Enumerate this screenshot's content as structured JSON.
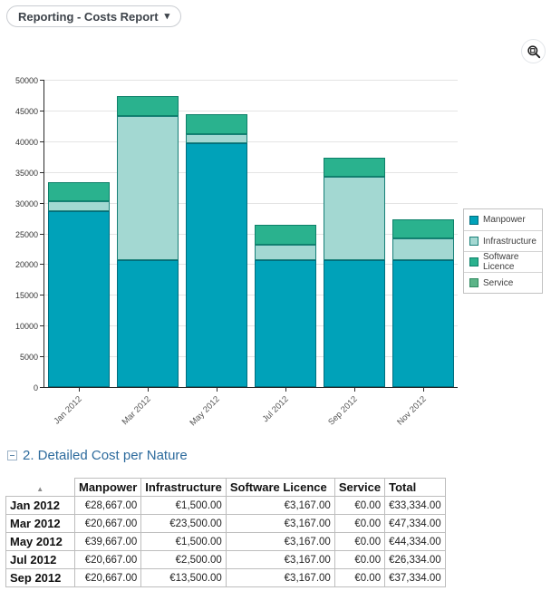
{
  "header": {
    "report_selector_label": "Reporting - Costs Report"
  },
  "icons": {
    "chevron_down": "▾",
    "sort_ascending": "▲",
    "zoom": "magnifier-with-selection-box"
  },
  "colors": {
    "accent_blue": "#2d6b9d",
    "axis": "#2a2a2a",
    "gridline": "#e4e4e4"
  },
  "chart_data": {
    "type": "bar",
    "stacked": true,
    "title": "",
    "xlabel": "",
    "ylabel": "",
    "categories": [
      "Jan 2012",
      "Mar 2012",
      "May 2012",
      "Jul 2012",
      "Sep 2012",
      "Nov 2012"
    ],
    "series": [
      {
        "name": "Manpower",
        "color": "#00A2B9",
        "border": "#006E7E",
        "values": [
          28667,
          20667,
          39667,
          20667,
          20667,
          20667
        ]
      },
      {
        "name": "Infrastructure",
        "color": "#A3D8D2",
        "border": "#188078",
        "values": [
          1500,
          23500,
          1500,
          2500,
          13500,
          3500
        ]
      },
      {
        "name": "Software Licence",
        "color": "#2AB28E",
        "border": "#0D8069",
        "values": [
          3167,
          3167,
          3167,
          3167,
          3167,
          3167
        ]
      },
      {
        "name": "Service",
        "color": "#5CB488",
        "border": "#2F8A5F",
        "values": [
          0,
          0,
          0,
          0,
          0,
          0
        ]
      }
    ],
    "ylim": [
      0,
      50000
    ],
    "ytick_step": 5000,
    "grid": true,
    "legend_position": "right"
  },
  "section": {
    "title": "2. Detailed Cost per Nature"
  },
  "table": {
    "columns": [
      "Manpower",
      "Infrastructure",
      "Software Licence",
      "Service",
      "Total"
    ],
    "rows": [
      {
        "label": "Jan 2012",
        "values": [
          "€28,667.00",
          "€1,500.00",
          "€3,167.00",
          "€0.00",
          "€33,334.00"
        ]
      },
      {
        "label": "Mar 2012",
        "values": [
          "€20,667.00",
          "€23,500.00",
          "€3,167.00",
          "€0.00",
          "€47,334.00"
        ]
      },
      {
        "label": "May 2012",
        "values": [
          "€39,667.00",
          "€1,500.00",
          "€3,167.00",
          "€0.00",
          "€44,334.00"
        ]
      },
      {
        "label": "Jul 2012",
        "values": [
          "€20,667.00",
          "€2,500.00",
          "€3,167.00",
          "€0.00",
          "€26,334.00"
        ]
      },
      {
        "label": "Sep 2012",
        "values": [
          "€20,667.00",
          "€13,500.00",
          "€3,167.00",
          "€0.00",
          "€37,334.00"
        ]
      }
    ]
  }
}
